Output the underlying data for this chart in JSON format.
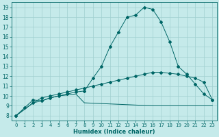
{
  "xlabel": "Humidex (Indice chaleur)",
  "bg_color": "#c5eaea",
  "line_color": "#006666",
  "grid_color": "#a0d0d0",
  "xlim": [
    -0.5,
    23.5
  ],
  "ylim": [
    7.5,
    19.5
  ],
  "xticks": [
    0,
    1,
    2,
    3,
    4,
    5,
    6,
    7,
    8,
    9,
    10,
    11,
    12,
    13,
    14,
    15,
    16,
    17,
    18,
    19,
    20,
    21,
    22,
    23
  ],
  "yticks": [
    8,
    9,
    10,
    11,
    12,
    13,
    14,
    15,
    16,
    17,
    18,
    19
  ],
  "curve1_x": [
    0,
    1,
    2,
    3,
    4,
    5,
    6,
    7,
    8,
    9,
    10,
    11,
    12,
    13,
    14,
    15,
    16,
    17,
    18,
    19,
    20,
    21,
    22,
    23
  ],
  "curve1_y": [
    8.0,
    8.8,
    9.6,
    9.5,
    9.8,
    10.0,
    10.2,
    10.4,
    10.5,
    11.8,
    13.0,
    15.0,
    16.5,
    18.0,
    18.2,
    19.0,
    18.8,
    17.5,
    15.5,
    13.0,
    12.2,
    11.2,
    10.2,
    9.6
  ],
  "curve2_x": [
    0,
    2,
    3,
    4,
    5,
    6,
    7,
    8,
    9,
    10,
    11,
    12,
    13,
    14,
    15,
    16,
    17,
    18,
    19,
    20,
    21,
    22,
    23
  ],
  "curve2_y": [
    8.0,
    9.3,
    9.8,
    10.0,
    10.2,
    10.4,
    10.6,
    10.8,
    11.0,
    11.2,
    11.4,
    11.6,
    11.8,
    12.0,
    12.2,
    12.4,
    12.4,
    12.3,
    12.2,
    12.0,
    11.8,
    11.4,
    9.6
  ],
  "curve3_x": [
    0,
    2,
    3,
    4,
    5,
    6,
    7,
    8,
    16,
    23
  ],
  "curve3_y": [
    8.0,
    9.3,
    9.5,
    9.8,
    10.0,
    10.1,
    10.2,
    9.3,
    9.0,
    9.0
  ]
}
